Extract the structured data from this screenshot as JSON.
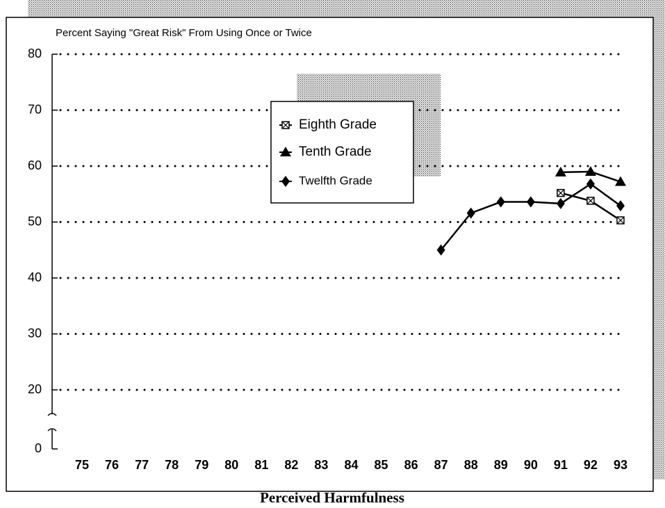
{
  "chart_data": {
    "type": "line",
    "title": "Percent Saying \"Great Risk\" From Using Once or Twice",
    "xlabel": "Perceived Harmfulness",
    "categories": [
      "75",
      "76",
      "77",
      "78",
      "79",
      "80",
      "81",
      "82",
      "83",
      "84",
      "85",
      "86",
      "87",
      "88",
      "89",
      "90",
      "91",
      "92",
      "93"
    ],
    "series": [
      {
        "name": "Eighth Grade",
        "color": "#000000",
        "marker": "square",
        "values": [
          null,
          null,
          null,
          null,
          null,
          null,
          null,
          null,
          null,
          null,
          null,
          null,
          null,
          null,
          null,
          null,
          55.2,
          53.8,
          50.3
        ]
      },
      {
        "name": "Tenth Grade",
        "color": "#000000",
        "marker": "triangle",
        "values": [
          null,
          null,
          null,
          null,
          null,
          null,
          null,
          null,
          null,
          null,
          null,
          null,
          null,
          null,
          null,
          null,
          58.9,
          59.0,
          57.2
        ]
      },
      {
        "name": "Twelfth Grade",
        "color": "#000000",
        "marker": "diamond",
        "values": [
          null,
          null,
          null,
          null,
          null,
          null,
          null,
          null,
          null,
          null,
          null,
          null,
          45.0,
          51.6,
          53.6,
          53.6,
          53.3,
          56.8,
          52.9
        ]
      }
    ],
    "ylim": [
      0,
      80
    ],
    "axis_break": [
      0,
      20
    ],
    "yticks": [
      0,
      20,
      30,
      40,
      50,
      60,
      70,
      80
    ],
    "grid": true
  }
}
